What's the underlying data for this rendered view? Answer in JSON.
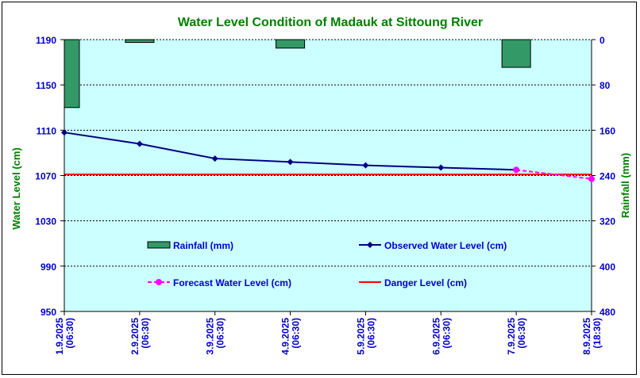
{
  "chart_data": {
    "type": "line",
    "title": "Water Level Condition of Madauk at Sittoung River",
    "ylabel": "Water Level (cm)",
    "y2label": "Rainfall (mm)",
    "ylim": [
      950,
      1190
    ],
    "y2lim": [
      0,
      480
    ],
    "y2_inverted": true,
    "yticks": [
      "1190",
      "1150",
      "1110",
      "1070",
      "1030",
      "990",
      "950"
    ],
    "y2ticks": [
      "0",
      "80",
      "160",
      "240",
      "320",
      "400",
      "480"
    ],
    "categories": [
      [
        "1.9.2025",
        "(06:30)"
      ],
      [
        "2.9.2025",
        "(06:30)"
      ],
      [
        "3.9.2025",
        "(06:30)"
      ],
      [
        "4.9.2025",
        "(06:30)"
      ],
      [
        "5.9.2025",
        "(06:30)"
      ],
      [
        "6.9.2025",
        "(06:30)"
      ],
      [
        "7.9.2025",
        "(06:30)"
      ],
      [
        "8.9.2025",
        "(18:30)"
      ]
    ],
    "rainfall": {
      "name": "Rainfall (mm)",
      "color": "#339966",
      "values": [
        120,
        5,
        0,
        15,
        0,
        0,
        49,
        0
      ]
    },
    "observed": {
      "name": "Observed Water Level (cm)",
      "color": "#000080",
      "values": [
        1108,
        1098,
        1085,
        1082,
        1079,
        1077,
        1075
      ]
    },
    "forecast": {
      "name": "Forecast Water Level (cm)",
      "color": "#ff00ff",
      "points": [
        [
          6,
          1075
        ],
        [
          7,
          1067
        ]
      ]
    },
    "danger": {
      "name": "Danger Level (cm)",
      "color": "#ff0000",
      "value": 1071
    },
    "grid": true,
    "legend_position": "inside-lower-plot",
    "colors": {
      "plot_bg": "#ccffff",
      "title": "#008000",
      "axis_text": "#0000cc"
    }
  }
}
